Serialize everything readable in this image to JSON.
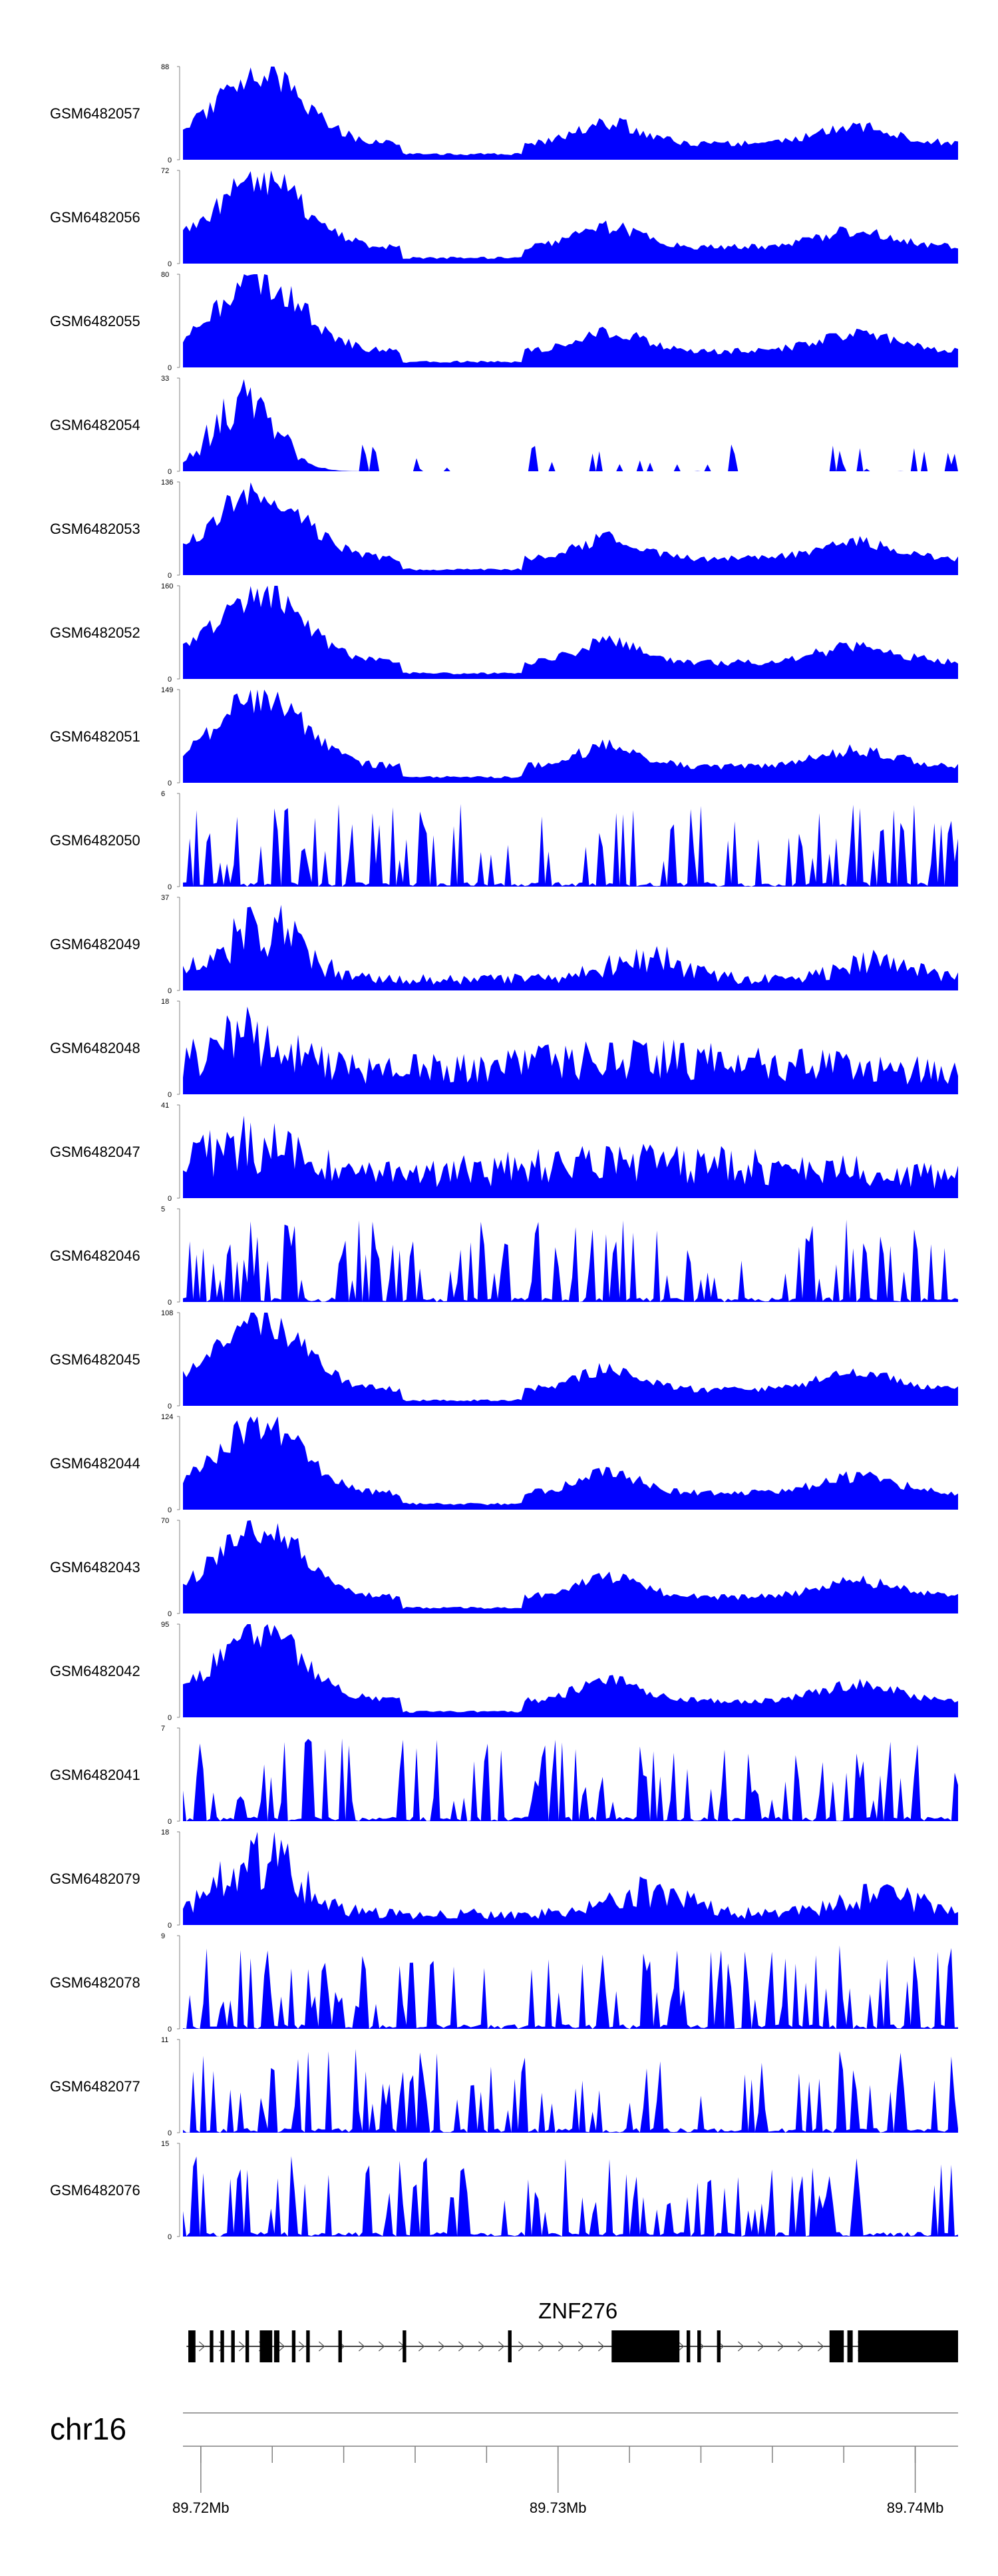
{
  "chart_data": {
    "type": "area",
    "title": "",
    "xlabel": "",
    "ylabel": "",
    "colors": {
      "signal": "#0000ff",
      "gene": "#000000",
      "axis": "#808080"
    },
    "region": {
      "chrom": "chr16",
      "start_mb": 89.7195,
      "end_mb": 89.7412
    },
    "x_axis": {
      "labels": [
        {
          "value": 89.72,
          "text": "89.72Mb"
        },
        {
          "value": 89.73,
          "text": "89.73Mb"
        },
        {
          "value": 89.74,
          "text": "89.74Mb"
        }
      ],
      "minor_ticks": [
        89.72,
        89.722,
        89.724,
        89.726,
        89.728,
        89.73,
        89.732,
        89.734,
        89.736,
        89.738,
        89.74
      ]
    },
    "tracks": [
      {
        "name": "GSM6482057",
        "ymax": 88,
        "ymin": 0,
        "profile": "strong",
        "seed": 11
      },
      {
        "name": "GSM6482056",
        "ymax": 72,
        "ymin": 0,
        "profile": "strong",
        "seed": 12
      },
      {
        "name": "GSM6482055",
        "ymax": 80,
        "ymin": 0,
        "profile": "strong",
        "seed": 13
      },
      {
        "name": "GSM6482054",
        "ymax": 33,
        "ymin": 0,
        "profile": "sparse_peak",
        "seed": 14
      },
      {
        "name": "GSM6482053",
        "ymax": 136,
        "ymin": 0,
        "profile": "strong",
        "seed": 15
      },
      {
        "name": "GSM6482052",
        "ymax": 160,
        "ymin": 0,
        "profile": "strong",
        "seed": 16
      },
      {
        "name": "GSM6482051",
        "ymax": 149,
        "ymin": 0,
        "profile": "strong",
        "seed": 17
      },
      {
        "name": "GSM6482050",
        "ymax": 6,
        "ymin": 0,
        "profile": "spiky",
        "seed": 18
      },
      {
        "name": "GSM6482049",
        "ymax": 37,
        "ymin": 0,
        "profile": "medium",
        "seed": 19
      },
      {
        "name": "GSM6482048",
        "ymax": 18,
        "ymin": 0,
        "profile": "noisy",
        "seed": 20
      },
      {
        "name": "GSM6482047",
        "ymax": 41,
        "ymin": 0,
        "profile": "noisy",
        "seed": 21
      },
      {
        "name": "GSM6482046",
        "ymax": 5,
        "ymin": 0,
        "profile": "spiky",
        "seed": 22
      },
      {
        "name": "GSM6482045",
        "ymax": 108,
        "ymin": 0,
        "profile": "strong",
        "seed": 23
      },
      {
        "name": "GSM6482044",
        "ymax": 124,
        "ymin": 0,
        "profile": "strong",
        "seed": 24
      },
      {
        "name": "GSM6482043",
        "ymax": 70,
        "ymin": 0,
        "profile": "strong",
        "seed": 25
      },
      {
        "name": "GSM6482042",
        "ymax": 95,
        "ymin": 0,
        "profile": "strong",
        "seed": 26
      },
      {
        "name": "GSM6482041",
        "ymax": 7,
        "ymin": 0,
        "profile": "spiky",
        "seed": 27
      },
      {
        "name": "GSM6482079",
        "ymax": 18,
        "ymin": 0,
        "profile": "medium",
        "seed": 28
      },
      {
        "name": "GSM6482078",
        "ymax": 9,
        "ymin": 0,
        "profile": "spiky",
        "seed": 29
      },
      {
        "name": "GSM6482077",
        "ymax": 11,
        "ymin": 0,
        "profile": "spiky",
        "seed": 30
      },
      {
        "name": "GSM6482076",
        "ymax": 15,
        "ymin": 0,
        "profile": "spiky",
        "seed": 31
      }
    ],
    "gene": {
      "name": "ZNF276",
      "strand": "+",
      "start_mb": 89.7196,
      "end_mb": 89.7412,
      "exons_mb": [
        [
          89.71965,
          89.71985
        ],
        [
          89.72025,
          89.72035
        ],
        [
          89.72055,
          89.72065
        ],
        [
          89.72085,
          89.72095
        ],
        [
          89.72125,
          89.72135
        ],
        [
          89.72165,
          89.722
        ],
        [
          89.72205,
          89.7222
        ],
        [
          89.72255,
          89.72265
        ],
        [
          89.72295,
          89.72305
        ],
        [
          89.72385,
          89.72395
        ],
        [
          89.72565,
          89.72575
        ],
        [
          89.7286,
          89.7287
        ],
        [
          89.7315,
          89.7334
        ],
        [
          89.7336,
          89.7337
        ],
        [
          89.7339,
          89.734
        ],
        [
          89.73445,
          89.73455
        ],
        [
          89.7376,
          89.738
        ],
        [
          89.7381,
          89.73825
        ],
        [
          89.7384,
          89.7412
        ]
      ]
    }
  }
}
